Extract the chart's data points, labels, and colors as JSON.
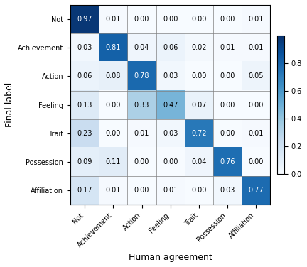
{
  "labels": [
    "Not",
    "Achievement",
    "Action",
    "Feeling",
    "Trait",
    "Possession",
    "Affiliation"
  ],
  "matrix": [
    [
      0.97,
      0.01,
      0.0,
      0.0,
      0.0,
      0.0,
      0.01
    ],
    [
      0.03,
      0.81,
      0.04,
      0.06,
      0.02,
      0.01,
      0.01
    ],
    [
      0.06,
      0.08,
      0.78,
      0.03,
      0.0,
      0.0,
      0.05
    ],
    [
      0.13,
      0.0,
      0.33,
      0.47,
      0.07,
      0.0,
      0.0
    ],
    [
      0.23,
      0.0,
      0.01,
      0.03,
      0.72,
      0.0,
      0.01
    ],
    [
      0.09,
      0.11,
      0.0,
      0.0,
      0.04,
      0.76,
      0.0
    ],
    [
      0.17,
      0.01,
      0.0,
      0.01,
      0.0,
      0.03,
      0.77
    ]
  ],
  "xlabel": "Human agreement",
  "ylabel": "Final label",
  "cmap": "Blues",
  "vmin": 0.0,
  "vmax": 1.0,
  "text_color_threshold": 0.5,
  "fontsize_annot": 7,
  "fontsize_labels": 7,
  "fontsize_axis_label": 9,
  "fontsize_cbar": 7,
  "colorbar_ticks": [
    0.0,
    0.2,
    0.4,
    0.6,
    0.8
  ],
  "colorbar_ticklabels": [
    "0.0",
    "0.2",
    "0.4",
    "0.6",
    "0.8"
  ]
}
